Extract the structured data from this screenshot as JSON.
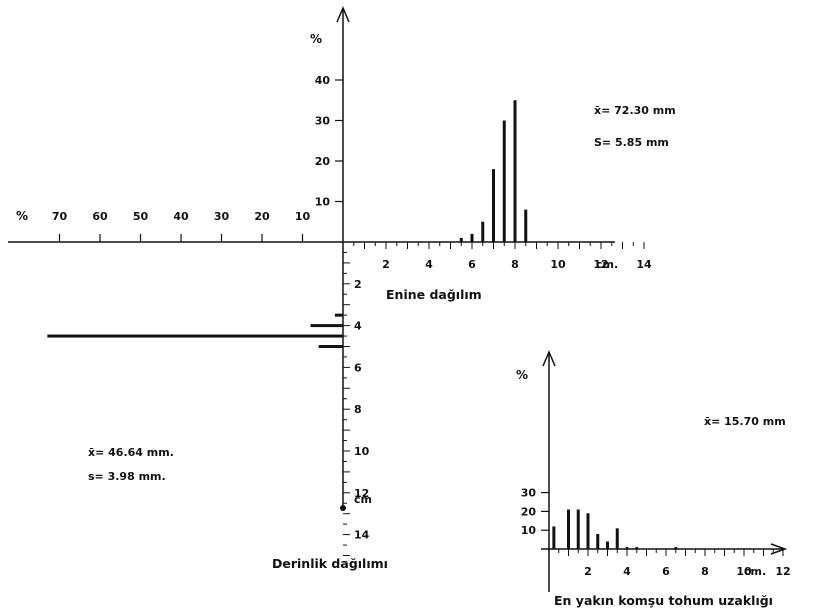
{
  "chart_data": [
    {
      "type": "bar",
      "caption": "Enine dağılım",
      "ylabel": "%",
      "xunit": "cm.",
      "x_ticks": [
        "2",
        "4",
        "6",
        "8",
        "10",
        "12",
        "14"
      ],
      "y_ticks": [
        "10",
        "20",
        "30",
        "40"
      ],
      "xlim": [
        0,
        15
      ],
      "ylim": [
        0,
        45
      ],
      "stats": [
        "x̄= 72.30 mm",
        "S= 5.85 mm"
      ],
      "x": [
        5.5,
        6.0,
        6.5,
        7.0,
        7.5,
        8.0,
        8.5
      ],
      "values": [
        1,
        2,
        5,
        18,
        30,
        35,
        8
      ]
    },
    {
      "type": "bar",
      "orientation": "horizontal",
      "caption": "Derinlik dağılımı",
      "xlabel": "%",
      "yunit": "cm",
      "x_ticks": [
        "70",
        "60",
        "50",
        "40",
        "30",
        "20",
        "10"
      ],
      "y_ticks": [
        "2",
        "4",
        "6",
        "8",
        "10",
        "12",
        "14"
      ],
      "xlim": [
        0,
        75
      ],
      "ylim": [
        0,
        16
      ],
      "stats": [
        "x̄= 46.64 mm.",
        "s= 3.98 mm."
      ],
      "y": [
        3.5,
        4.0,
        4.5,
        5.0
      ],
      "values": [
        2,
        8,
        73,
        6
      ]
    },
    {
      "type": "bar",
      "caption": "En yakın komşu tohum uzaklığı",
      "ylabel": "%",
      "xunit": "cm.",
      "x_ticks": [
        "2",
        "4",
        "6",
        "8",
        "10",
        "12"
      ],
      "y_ticks": [
        "10",
        "20",
        "30"
      ],
      "xlim": [
        0,
        13
      ],
      "ylim": [
        0,
        40
      ],
      "stats": [
        "x̄= 15.70 mm"
      ],
      "x": [
        0.25,
        1.0,
        1.5,
        2.0,
        2.5,
        3.0,
        3.5,
        4.0,
        4.5,
        6.5
      ],
      "values": [
        12,
        21,
        21,
        19,
        8,
        4,
        11,
        1,
        1,
        1
      ]
    }
  ]
}
